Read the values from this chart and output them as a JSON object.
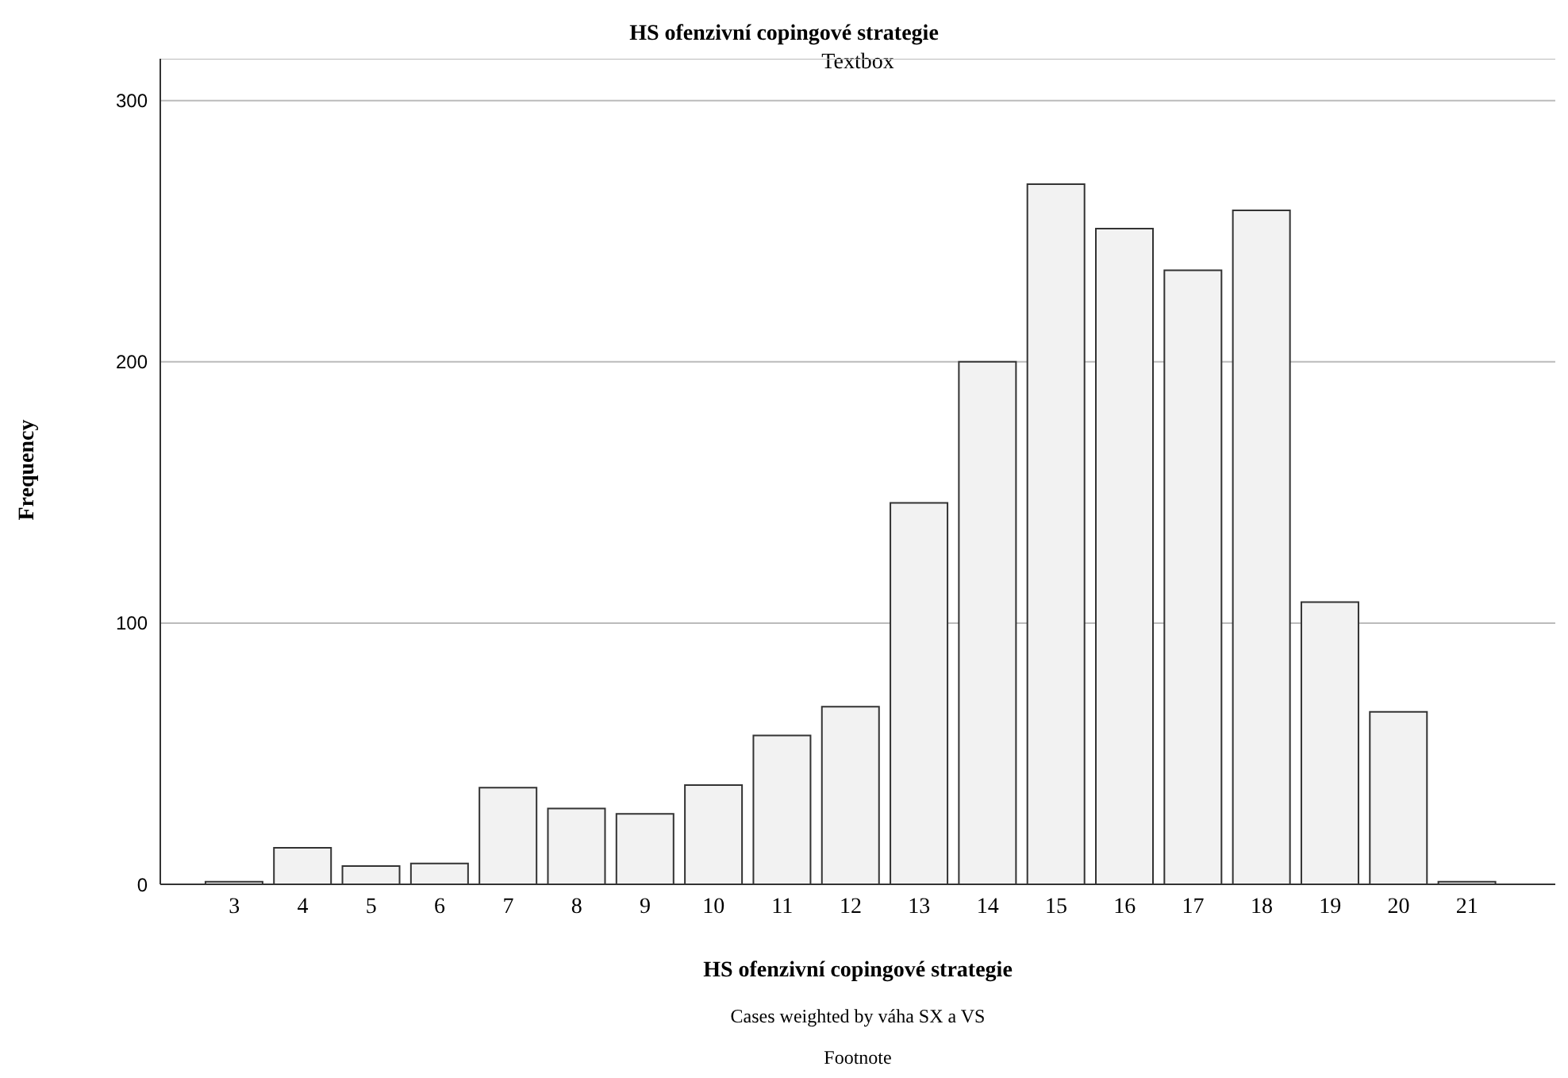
{
  "chart_data": {
    "type": "bar",
    "title": "HS ofenzivní copingové strategie",
    "xlabel": "HS ofenzivní copingové strategie",
    "ylabel": "Frequency",
    "annotations": [
      "Textbox",
      "Cases weighted by váha SX a VS",
      "Footnote"
    ],
    "categories": [
      "3",
      "4",
      "5",
      "6",
      "7",
      "8",
      "9",
      "10",
      "11",
      "12",
      "13",
      "14",
      "15",
      "16",
      "17",
      "18",
      "19",
      "20",
      "21"
    ],
    "values": [
      1,
      14,
      7,
      8,
      37,
      29,
      27,
      38,
      57,
      68,
      146,
      200,
      268,
      251,
      235,
      258,
      108,
      66,
      1
    ],
    "color": "#f2f2f2",
    "ylim": [
      0,
      316
    ],
    "yticks": [
      0,
      100,
      200,
      300
    ],
    "grid": "y",
    "legend": false
  }
}
